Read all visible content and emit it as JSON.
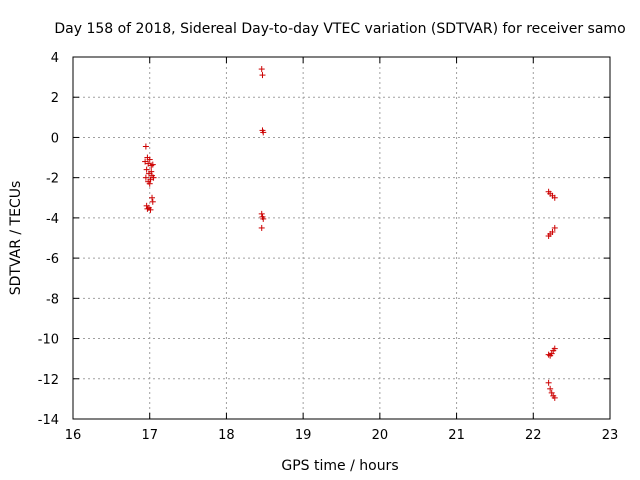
{
  "chart_data": {
    "type": "scatter",
    "title": "Day 158 of 2018, Sidereal Day-to-day VTEC variation (SDTVAR) for receiver samo",
    "xlabel": "GPS time / hours",
    "ylabel": "SDTVAR / TECUs",
    "xlim": [
      16,
      23
    ],
    "ylim": [
      -14,
      4
    ],
    "xticks": [
      16,
      17,
      18,
      19,
      20,
      21,
      22,
      23
    ],
    "yticks": [
      4,
      2,
      0,
      -2,
      -4,
      -6,
      -8,
      -10,
      -12,
      -14
    ],
    "grid": true,
    "marker": "+",
    "color": "#cc0000",
    "series": [
      {
        "name": "SDTVAR",
        "points": [
          [
            16.95,
            -0.45
          ],
          [
            16.97,
            -1.0
          ],
          [
            16.94,
            -1.2
          ],
          [
            16.98,
            -1.3
          ],
          [
            17.0,
            -1.1
          ],
          [
            17.02,
            -1.4
          ],
          [
            17.04,
            -1.35
          ],
          [
            16.96,
            -1.6
          ],
          [
            16.99,
            -1.8
          ],
          [
            17.03,
            -1.9
          ],
          [
            16.95,
            -2.0
          ],
          [
            17.01,
            -2.1
          ],
          [
            16.98,
            -2.2
          ],
          [
            17.05,
            -2.0
          ],
          [
            17.0,
            -2.3
          ],
          [
            17.02,
            -1.7
          ],
          [
            17.03,
            -3.0
          ],
          [
            17.04,
            -3.2
          ],
          [
            16.96,
            -3.4
          ],
          [
            16.99,
            -3.5
          ],
          [
            17.01,
            -3.6
          ],
          [
            16.97,
            -3.55
          ],
          [
            18.46,
            3.4
          ],
          [
            18.47,
            3.1
          ],
          [
            18.47,
            0.35
          ],
          [
            18.48,
            0.25
          ],
          [
            18.46,
            -3.8
          ],
          [
            18.47,
            -3.95
          ],
          [
            18.48,
            -4.05
          ],
          [
            18.46,
            -4.5
          ],
          [
            22.2,
            -2.7
          ],
          [
            22.22,
            -2.8
          ],
          [
            22.25,
            -2.9
          ],
          [
            22.28,
            -3.0
          ],
          [
            22.2,
            -4.9
          ],
          [
            22.22,
            -4.8
          ],
          [
            22.25,
            -4.7
          ],
          [
            22.28,
            -4.5
          ],
          [
            22.2,
            -10.8
          ],
          [
            22.22,
            -10.85
          ],
          [
            22.24,
            -10.75
          ],
          [
            22.26,
            -10.6
          ],
          [
            22.28,
            -10.5
          ],
          [
            22.2,
            -12.2
          ],
          [
            22.22,
            -12.5
          ],
          [
            22.24,
            -12.7
          ],
          [
            22.26,
            -12.85
          ],
          [
            22.28,
            -12.95
          ]
        ]
      }
    ]
  }
}
